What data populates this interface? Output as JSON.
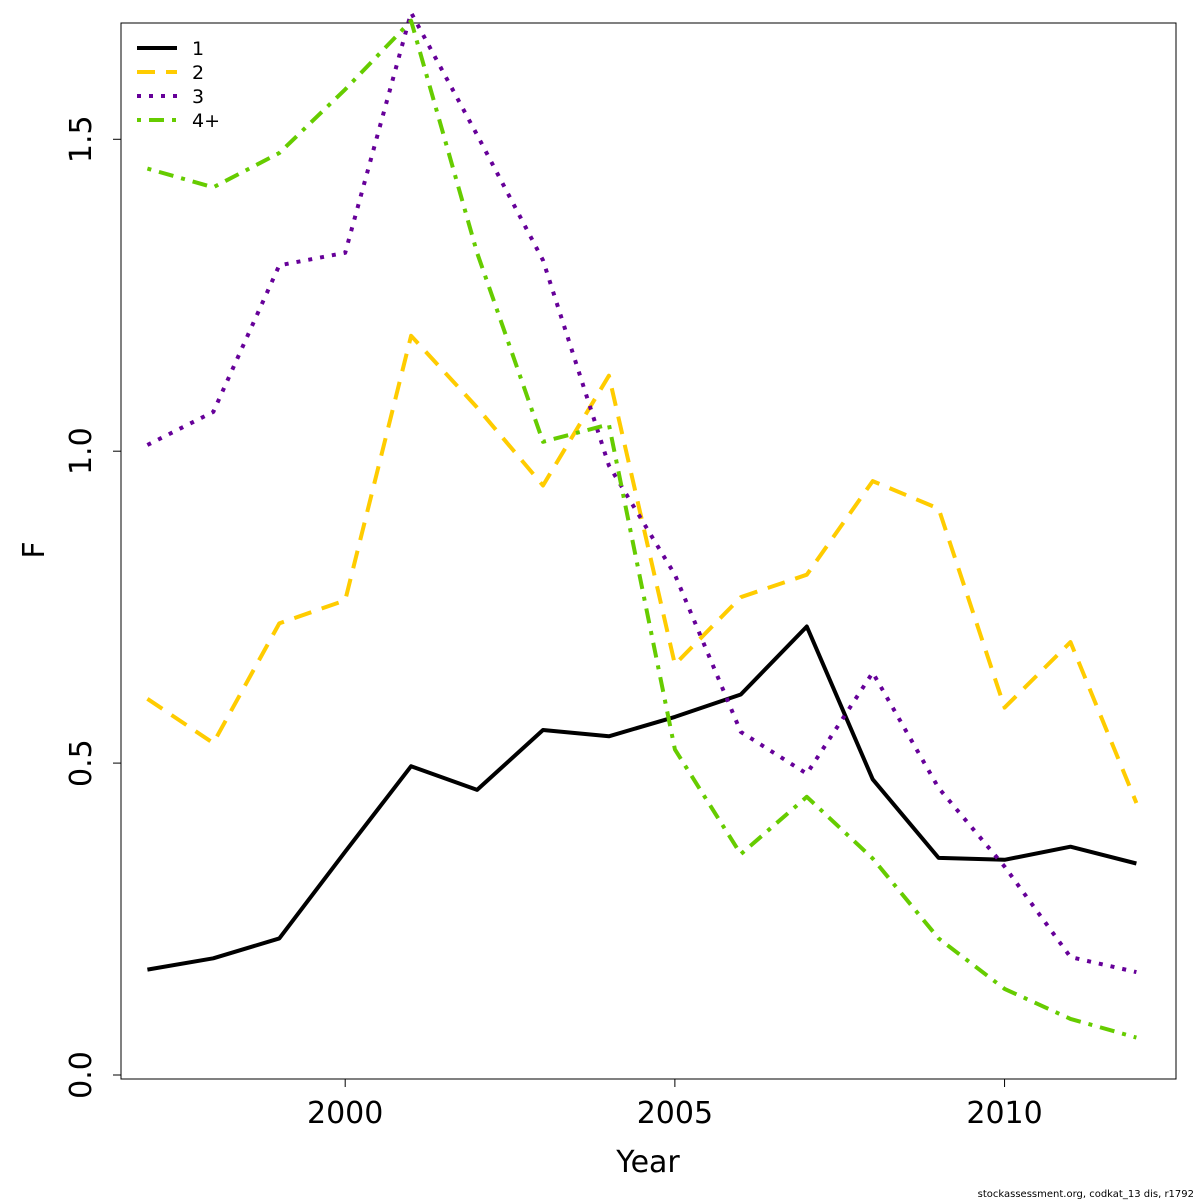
{
  "chart_data": {
    "type": "line",
    "xlabel": "Year",
    "ylabel": "F",
    "xlim": [
      1996.6,
      2012.6
    ],
    "ylim": [
      0.0,
      1.68
    ],
    "xticks": [
      2000,
      2005,
      2010
    ],
    "yticks": [
      0.0,
      0.5,
      1.0,
      1.5
    ],
    "xtick_labels": [
      "2000",
      "2005",
      "2010"
    ],
    "ytick_labels": [
      "0.0",
      "0.5",
      "1.0",
      "1.5"
    ],
    "grid": false,
    "legend_position": "top-left",
    "x": [
      1997,
      1998,
      1999,
      2000,
      2001,
      2002,
      2003,
      2004,
      2005,
      2006,
      2007,
      2008,
      2009,
      2010,
      2011,
      2012
    ],
    "series": [
      {
        "name": "1",
        "color": "#000000",
        "dash": "solid",
        "values": [
          0.169,
          0.187,
          0.219,
          0.358,
          0.495,
          0.457,
          0.553,
          0.543,
          0.574,
          0.61,
          0.719,
          0.474,
          0.348,
          0.345,
          0.366,
          0.339
        ]
      },
      {
        "name": "2",
        "color": "#FFCC00",
        "dash": "dashed",
        "values": [
          0.603,
          0.532,
          0.724,
          0.761,
          1.185,
          1.07,
          0.945,
          1.121,
          0.658,
          0.766,
          0.802,
          0.952,
          0.908,
          0.589,
          0.694,
          0.436
        ]
      },
      {
        "name": "3",
        "color": "#660099",
        "dash": "dotted",
        "values": [
          1.01,
          1.063,
          1.298,
          1.318,
          1.703,
          1.507,
          1.306,
          0.977,
          0.802,
          0.55,
          0.483,
          0.645,
          0.46,
          0.334,
          0.189,
          0.165
        ]
      },
      {
        "name": "4+",
        "color": "#66CC00",
        "dash": "dotdash",
        "values": [
          1.453,
          1.423,
          1.478,
          1.58,
          1.69,
          1.318,
          1.015,
          1.043,
          0.522,
          0.354,
          0.446,
          0.347,
          0.219,
          0.138,
          0.09,
          0.06
        ]
      }
    ]
  },
  "footer": "stockassessment.org, codkat_13 dis, r1792"
}
